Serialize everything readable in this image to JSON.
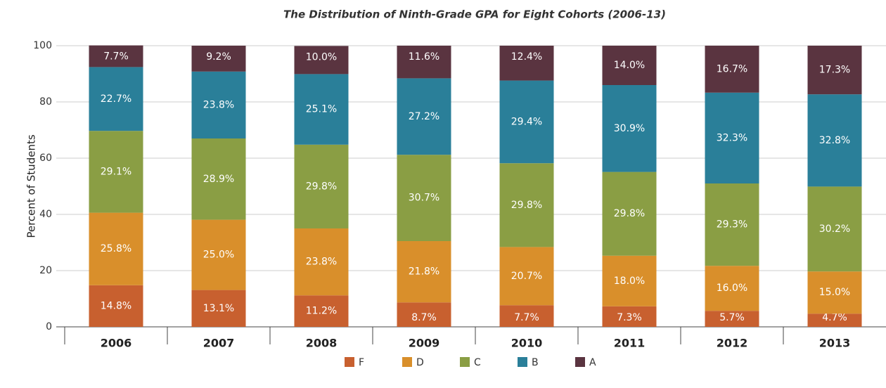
{
  "chart_data": {
    "type": "stacked_bar",
    "title": "The Distribution of Ninth-Grade GPA for Eight Cohorts (2006-13)",
    "y_label": "Percent of Students",
    "categories": [
      "2006",
      "2007",
      "2008",
      "2009",
      "2010",
      "2011",
      "2012",
      "2013"
    ],
    "series": [
      {
        "name": "F",
        "color": "#c8602f",
        "values": [
          14.8,
          13.1,
          11.2,
          8.7,
          7.7,
          7.3,
          5.7,
          4.7
        ],
        "value_labels": [
          "14.8%",
          "13.1%",
          "11.2%",
          "8.7%",
          "7.7%",
          "7.3%",
          "5.7%",
          "4.7%"
        ]
      },
      {
        "name": "D",
        "color": "#d98f2b",
        "values": [
          25.8,
          25.0,
          23.8,
          21.8,
          20.7,
          18.0,
          16.0,
          15.0
        ],
        "value_labels": [
          "25.8%",
          "25.0%",
          "23.8%",
          "21.8%",
          "20.7%",
          "18.0%",
          "16.0%",
          "15.0%"
        ]
      },
      {
        "name": "C",
        "color": "#8a9e44",
        "values": [
          29.1,
          28.9,
          29.8,
          30.7,
          29.8,
          29.8,
          29.3,
          30.2
        ],
        "value_labels": [
          "29.1%",
          "28.9%",
          "29.8%",
          "30.7%",
          "29.8%",
          "29.8%",
          "29.3%",
          "30.2%"
        ]
      },
      {
        "name": "B",
        "color": "#2a7f99",
        "values": [
          22.7,
          23.8,
          25.1,
          27.2,
          29.4,
          30.9,
          32.3,
          32.8
        ],
        "value_labels": [
          "22.7%",
          "23.8%",
          "25.1%",
          "27.2%",
          "29.4%",
          "30.9%",
          "32.3%",
          "32.8%"
        ]
      },
      {
        "name": "A",
        "color": "#5a3440",
        "values": [
          7.7,
          9.2,
          10.0,
          11.6,
          12.4,
          14.0,
          16.7,
          17.3
        ],
        "value_labels": [
          "7.7%",
          "9.2%",
          "10.0%",
          "11.6%",
          "12.4%",
          "14.0%",
          "16.7%",
          "17.3%"
        ]
      }
    ],
    "ylim": [
      0,
      100
    ],
    "yticks": [
      0,
      20,
      40,
      60,
      80,
      100
    ],
    "grid": true,
    "legend": "bottom"
  }
}
